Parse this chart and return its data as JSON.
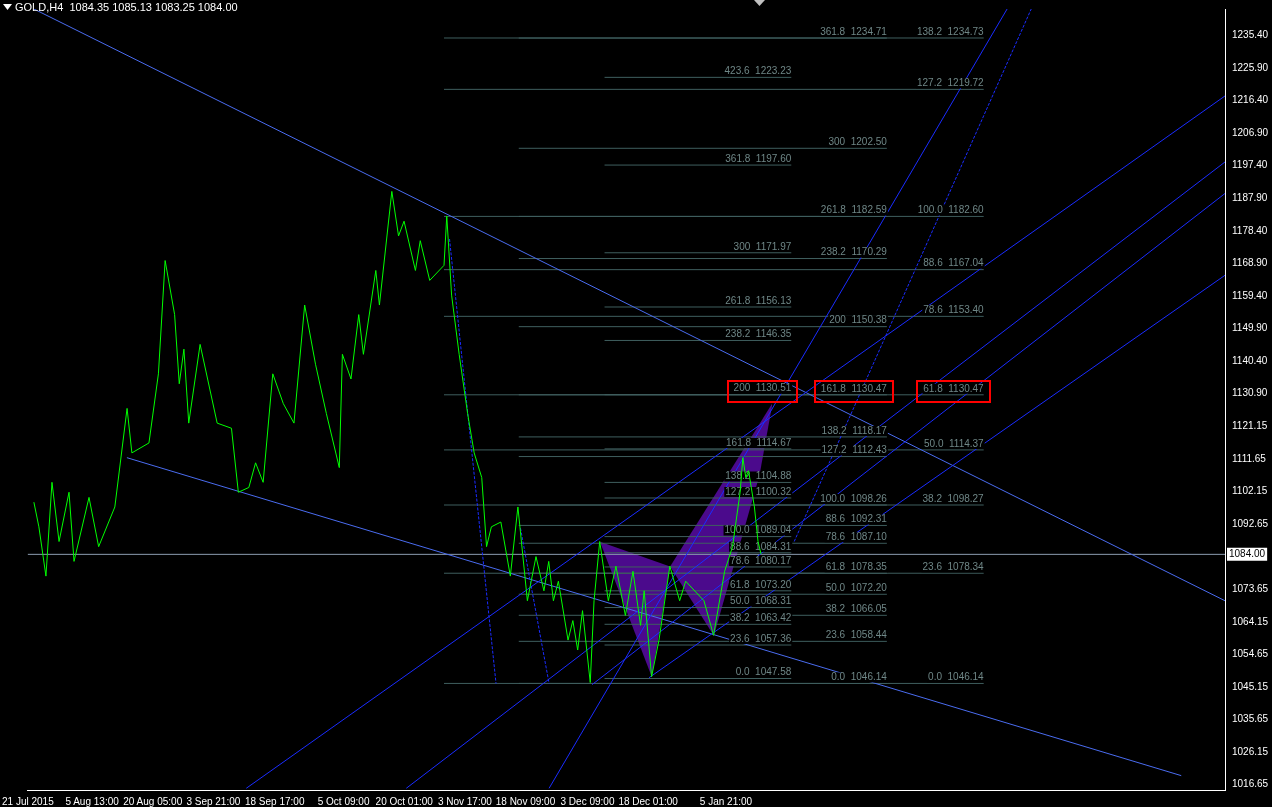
{
  "chart_data": {
    "type": "line",
    "title": "GOLD,H4  1084.35 1085.13 1083.25 1084.00",
    "xlim": [
      "2015-07-21T00:00",
      "2016-05-05T14:00"
    ],
    "xticks": [
      {
        "value": "2015-07-21T00:00",
        "label": "21 Jul 2015"
      },
      {
        "value": "2015-08-05T13:00",
        "label": "5 Aug 13:00"
      },
      {
        "value": "2015-08-20T05:00",
        "label": "20 Aug 05:00"
      },
      {
        "value": "2015-09-03T21:00",
        "label": "3 Sep 21:00"
      },
      {
        "value": "2015-09-18T17:00",
        "label": "18 Sep 17:00"
      },
      {
        "value": "2015-10-05T09:00",
        "label": "5 Oct 09:00"
      },
      {
        "value": "2015-10-20T01:00",
        "label": "20 Oct 01:00"
      },
      {
        "value": "2015-11-03T17:00",
        "label": "3 Nov 17:00"
      },
      {
        "value": "2015-11-18T09:00",
        "label": "18 Nov 09:00"
      },
      {
        "value": "2015-12-03T09:00",
        "label": "3 Dec 09:00"
      },
      {
        "value": "2015-12-18T01:00",
        "label": "18 Dec 01:00"
      },
      {
        "value": "2016-01-05T21:00",
        "label": "5 Jan 21:00"
      }
    ],
    "ylim": [
      1015,
      1243.2
    ],
    "yticks": [
      {
        "value": 1235.4,
        "label": "1235.40"
      },
      {
        "value": 1225.9,
        "label": "1225.90"
      },
      {
        "value": 1216.4,
        "label": "1216.40"
      },
      {
        "value": 1206.9,
        "label": "1206.90"
      },
      {
        "value": 1197.4,
        "label": "1197.40"
      },
      {
        "value": 1187.9,
        "label": "1187.90"
      },
      {
        "value": 1178.4,
        "label": "1178.40"
      },
      {
        "value": 1168.9,
        "label": "1168.90"
      },
      {
        "value": 1159.4,
        "label": "1159.40"
      },
      {
        "value": 1149.9,
        "label": "1149.90"
      },
      {
        "value": 1140.4,
        "label": "1140.40"
      },
      {
        "value": 1130.9,
        "label": "1130.90"
      },
      {
        "value": 1121.15,
        "label": "1121.15"
      },
      {
        "value": 1111.65,
        "label": "1111.65"
      },
      {
        "value": 1102.15,
        "label": "1102.15"
      },
      {
        "value": 1092.65,
        "label": "1092.65"
      },
      {
        "value": 1073.65,
        "label": "1073.65"
      },
      {
        "value": 1064.15,
        "label": "1064.15"
      },
      {
        "value": 1054.65,
        "label": "1054.65"
      },
      {
        "value": 1045.15,
        "label": "1045.15"
      },
      {
        "value": 1035.65,
        "label": "1035.65"
      },
      {
        "value": 1026.15,
        "label": "1026.15"
      },
      {
        "value": 1016.65,
        "label": "1016.65"
      }
    ],
    "ref_lines": [
      {
        "axis": "y",
        "value": 1084.0,
        "label": "1084.00",
        "color": "#8c9cb0"
      }
    ],
    "series": [
      {
        "color": "#3f5f5f",
        "x": [
          "2015-10-29T16:00",
          "2016-03-08T05:00"
        ],
        "values": [
          1234.73,
          1234.73
        ]
      },
      {
        "color": "#3f5f5f",
        "x": [
          "2015-10-29T16:00",
          "2016-03-08T05:00"
        ],
        "values": [
          1219.72,
          1219.72
        ]
      },
      {
        "color": "#3f5f5f",
        "x": [
          "2015-10-29T16:00",
          "2016-03-08T05:00"
        ],
        "values": [
          1182.6,
          1182.6
        ]
      },
      {
        "color": "#3f5f5f",
        "x": [
          "2015-10-29T16:00",
          "2016-03-08T05:00"
        ],
        "values": [
          1167.04,
          1167.04
        ]
      },
      {
        "color": "#3f5f5f",
        "x": [
          "2015-10-29T16:00",
          "2016-03-08T05:00"
        ],
        "values": [
          1153.4,
          1153.4
        ]
      },
      {
        "color": "#3f5f5f",
        "x": [
          "2015-10-29T16:00",
          "2016-03-08T05:00"
        ],
        "values": [
          1130.47,
          1130.47
        ]
      },
      {
        "color": "#3f5f5f",
        "x": [
          "2015-10-29T16:00",
          "2016-03-08T05:00"
        ],
        "values": [
          1114.37,
          1114.37
        ]
      },
      {
        "color": "#3f5f5f",
        "x": [
          "2015-10-29T16:00",
          "2016-03-08T05:00"
        ],
        "values": [
          1098.27,
          1098.27
        ]
      },
      {
        "color": "#3f5f5f",
        "x": [
          "2015-10-29T16:00",
          "2016-03-08T05:00"
        ],
        "values": [
          1078.34,
          1078.34
        ]
      },
      {
        "color": "#3f5f5f",
        "x": [
          "2015-10-29T16:00",
          "2016-03-08T05:00"
        ],
        "values": [
          1046.14,
          1046.14
        ]
      },
      {
        "color": "#3f5f5f",
        "x": [
          "2015-11-16T18:00",
          "2016-02-13T19:00"
        ],
        "values": [
          1234.71,
          1234.71
        ]
      },
      {
        "color": "#3f5f5f",
        "x": [
          "2015-11-16T18:00",
          "2016-02-13T19:00"
        ],
        "values": [
          1202.5,
          1202.5
        ]
      },
      {
        "color": "#3f5f5f",
        "x": [
          "2015-11-16T18:00",
          "2016-02-13T19:00"
        ],
        "values": [
          1182.59,
          1182.59
        ]
      },
      {
        "color": "#3f5f5f",
        "x": [
          "2015-11-16T18:00",
          "2016-02-13T19:00"
        ],
        "values": [
          1170.29,
          1170.29
        ]
      },
      {
        "color": "#3f5f5f",
        "x": [
          "2015-11-16T18:00",
          "2016-02-13T19:00"
        ],
        "values": [
          1150.38,
          1150.38
        ]
      },
      {
        "color": "#3f5f5f",
        "x": [
          "2015-11-16T18:00",
          "2016-02-13T19:00"
        ],
        "values": [
          1130.47,
          1130.47
        ]
      },
      {
        "color": "#3f5f5f",
        "x": [
          "2015-11-16T18:00",
          "2016-02-13T19:00"
        ],
        "values": [
          1118.17,
          1118.17
        ]
      },
      {
        "color": "#3f5f5f",
        "x": [
          "2015-11-16T18:00",
          "2016-02-13T19:00"
        ],
        "values": [
          1112.43,
          1112.43
        ]
      },
      {
        "color": "#3f5f5f",
        "x": [
          "2015-11-16T18:00",
          "2016-02-13T19:00"
        ],
        "values": [
          1098.26,
          1098.26
        ]
      },
      {
        "color": "#3f5f5f",
        "x": [
          "2015-11-16T18:00",
          "2016-02-13T19:00"
        ],
        "values": [
          1092.31,
          1092.31
        ]
      },
      {
        "color": "#3f5f5f",
        "x": [
          "2015-11-16T18:00",
          "2016-02-13T19:00"
        ],
        "values": [
          1087.1,
          1087.1
        ]
      },
      {
        "color": "#3f5f5f",
        "x": [
          "2015-11-16T18:00",
          "2016-02-13T19:00"
        ],
        "values": [
          1078.35,
          1078.35
        ]
      },
      {
        "color": "#3f5f5f",
        "x": [
          "2015-11-16T18:00",
          "2016-02-13T19:00"
        ],
        "values": [
          1072.2,
          1072.2
        ]
      },
      {
        "color": "#3f5f5f",
        "x": [
          "2015-11-16T18:00",
          "2016-02-13T19:00"
        ],
        "values": [
          1066.05,
          1066.05
        ]
      },
      {
        "color": "#3f5f5f",
        "x": [
          "2015-11-16T18:00",
          "2016-02-13T19:00"
        ],
        "values": [
          1058.44,
          1058.44
        ]
      },
      {
        "color": "#3f5f5f",
        "x": [
          "2015-11-16T18:00",
          "2016-02-13T19:00"
        ],
        "values": [
          1046.14,
          1046.14
        ]
      },
      {
        "color": "#3f5f5f",
        "x": [
          "2015-12-07T12:00",
          "2016-01-21T16:00"
        ],
        "values": [
          1223.23,
          1223.23
        ]
      },
      {
        "color": "#3f5f5f",
        "x": [
          "2015-12-07T12:00",
          "2016-01-21T16:00"
        ],
        "values": [
          1197.6,
          1197.6
        ]
      },
      {
        "color": "#3f5f5f",
        "x": [
          "2015-12-07T12:00",
          "2016-01-21T16:00"
        ],
        "values": [
          1171.97,
          1171.97
        ]
      },
      {
        "color": "#3f5f5f",
        "x": [
          "2015-12-07T12:00",
          "2016-01-21T16:00"
        ],
        "values": [
          1156.13,
          1156.13
        ]
      },
      {
        "color": "#3f5f5f",
        "x": [
          "2015-12-07T12:00",
          "2016-01-21T16:00"
        ],
        "values": [
          1146.35,
          1146.35
        ]
      },
      {
        "color": "#3f5f5f",
        "x": [
          "2015-12-07T12:00",
          "2016-01-21T16:00"
        ],
        "values": [
          1130.51,
          1130.51
        ]
      },
      {
        "color": "#3f5f5f",
        "x": [
          "2015-12-07T12:00",
          "2016-01-21T16:00"
        ],
        "values": [
          1114.67,
          1114.67
        ]
      },
      {
        "color": "#3f5f5f",
        "x": [
          "2015-12-07T12:00",
          "2016-01-21T16:00"
        ],
        "values": [
          1104.88,
          1104.88
        ]
      },
      {
        "color": "#3f5f5f",
        "x": [
          "2015-12-07T12:00",
          "2016-01-21T16:00"
        ],
        "values": [
          1100.32,
          1100.32
        ]
      },
      {
        "color": "#3f5f5f",
        "x": [
          "2015-12-07T12:00",
          "2016-01-21T16:00"
        ],
        "values": [
          1089.04,
          1089.04
        ]
      },
      {
        "color": "#3f5f5f",
        "x": [
          "2015-12-07T12:00",
          "2016-01-21T16:00"
        ],
        "values": [
          1084.31,
          1084.31
        ]
      },
      {
        "color": "#3f5f5f",
        "x": [
          "2015-12-07T12:00",
          "2016-01-21T16:00"
        ],
        "values": [
          1080.17,
          1080.17
        ]
      },
      {
        "color": "#3f5f5f",
        "x": [
          "2015-12-07T12:00",
          "2016-01-21T16:00"
        ],
        "values": [
          1073.2,
          1073.2
        ]
      },
      {
        "color": "#3f5f5f",
        "x": [
          "2015-12-07T12:00",
          "2016-01-21T16:00"
        ],
        "values": [
          1068.31,
          1068.31
        ]
      },
      {
        "color": "#3f5f5f",
        "x": [
          "2015-12-07T12:00",
          "2016-01-21T16:00"
        ],
        "values": [
          1063.42,
          1063.42
        ]
      },
      {
        "color": "#3f5f5f",
        "x": [
          "2015-12-07T12:00",
          "2016-01-21T16:00"
        ],
        "values": [
          1057.36,
          1057.36
        ]
      },
      {
        "color": "#3f5f5f",
        "x": [
          "2015-12-07T12:00",
          "2016-01-21T16:00"
        ],
        "values": [
          1047.58,
          1047.58
        ]
      },
      {
        "color": "#4a6cf0",
        "x": [
          "2015-07-22T11:00",
          "2016-05-05T14:00"
        ],
        "values": [
          1243.2,
          1070.3
        ]
      },
      {
        "color": "#4a6cf0",
        "x": [
          "2015-08-13T23:00",
          "2016-04-25T00:00"
        ],
        "values": [
          1112.1,
          1019.2
        ]
      },
      {
        "color": "#1a2cff",
        "x": [
          "2015-09-11T20:00",
          "2016-05-05T14:00"
        ],
        "values": [
          1015.5,
          1217.8
        ]
      },
      {
        "color": "#1a2cff",
        "x": [
          "2015-10-20T13:00",
          "2016-05-05T14:00"
        ],
        "values": [
          1015.5,
          1198.5
        ]
      },
      {
        "color": "#1a2cff",
        "x": [
          "2015-12-04T12:00",
          "2016-05-05T14:00"
        ],
        "values": [
          1045.8,
          1189.3
        ]
      },
      {
        "color": "#1a2cff",
        "x": [
          "2015-12-18T06:00",
          "2016-05-05T14:00"
        ],
        "values": [
          1047.8,
          1165.4
        ]
      },
      {
        "color": "#1a2cff",
        "x": [
          "2015-11-24T02:00",
          "2016-03-13T21:00"
        ],
        "values": [
          1015.5,
          1243.2
        ]
      },
      {
        "color": "#1a2cff",
        "x": [
          "2016-01-22T09:00",
          "2016-03-19T17:00"
        ],
        "values": [
          1087.6,
          1243.2
        ],
        "line_style": "dashed"
      },
      {
        "color": "#1a2cff",
        "x": [
          "2015-10-31T00:00",
          "2015-11-11T06:00"
        ],
        "values": [
          1176.0,
          1046.1
        ],
        "line_style": "dashed"
      },
      {
        "color": "#1a2cff",
        "x": [
          "2015-11-17T04:00",
          "2015-11-24T02:00"
        ],
        "values": [
          1091.5,
          1046.1
        ],
        "line_style": "dashed"
      },
      {
        "color": "#00ff00",
        "x": [
          "2015-07-22T11:00",
          "2015-07-23T16:00",
          "2015-07-25T09:00",
          "2015-07-26T20:00",
          "2015-07-28T13:00",
          "2015-07-30T23:00",
          "2015-08-01T04:00",
          "2015-08-04T19:00",
          "2015-08-07T03:00",
          "2015-08-11T01:00",
          "2015-08-14T00:00",
          "2015-08-15T04:00",
          "2015-08-19T07:00",
          "2015-08-21T14:00",
          "2015-08-23T05:00",
          "2015-08-25T12:00",
          "2015-08-26T15:00",
          "2015-08-27T18:00",
          "2015-08-28T22:00",
          "2015-08-31T16:00",
          "2015-09-04T19:00",
          "2015-09-08T06:00",
          "2015-09-09T22:00",
          "2015-09-12T11:00",
          "2015-09-14T02:00",
          "2015-09-15T22:00",
          "2015-09-18T06:00",
          "2015-09-20T19:00",
          "2015-09-23T09:00",
          "2015-09-25T23:00",
          "2015-09-28T14:00",
          "2015-10-01T05:00",
          "2015-10-04T08:00",
          "2015-10-05T02:00",
          "2015-10-07T04:00",
          "2015-10-09T01:00",
          "2015-10-10T04:00",
          "2015-10-13T04:00",
          "2015-10-14T01:00",
          "2015-10-17T01:00",
          "2015-10-18T16:00",
          "2015-10-20T00:00",
          "2015-10-22T18:00",
          "2015-10-23T22:00",
          "2015-10-26T05:00",
          "2015-10-29T16:00",
          "2015-10-30T08:00",
          "2015-10-31T12:00",
          "2015-11-02T08:00",
          "2015-11-04T09:00",
          "2015-11-05T23:00",
          "2015-11-07T19:00",
          "2015-11-08T23:00",
          "2015-11-10T03:00",
          "2015-11-12T10:00",
          "2015-11-14T17:00",
          "2015-11-16T13:00",
          "2015-11-18T20:00",
          "2015-11-20T22:00",
          "2015-11-22T20:00",
          "2015-11-24T00:00",
          "2015-11-25T03:00",
          "2015-11-26T08:00",
          "2015-11-28T16:00",
          "2015-11-29T20:00",
          "2015-12-01T00:00",
          "2015-12-02T04:00",
          "2015-12-04T01:00",
          "2015-12-04T23:00",
          "2015-12-06T08:00",
          "2015-12-08T10:00",
          "2015-12-10T06:00",
          "2015-12-12T13:00",
          "2015-12-14T09:00",
          "2015-12-16T05:00",
          "2015-12-17T02:00",
          "2015-12-18T21:00",
          "2015-12-20T16:00",
          "2015-12-23T07:00",
          "2015-12-25T16:00",
          "2015-12-27T03:00",
          "2015-12-31T13:00",
          "2016-01-02T21:00",
          "2016-01-05T13:00",
          "2016-01-07T11:00",
          "2016-01-09T07:00",
          "2016-01-09T23:00",
          "2016-01-10T16:00",
          "2016-01-11T08:00",
          "2016-01-12T18:00",
          "2016-01-13T15:00",
          "2016-01-14T08:00"
        ],
        "values": [
          1099.1,
          1091.9,
          1077.5,
          1104.9,
          1087.6,
          1102.0,
          1081.8,
          1100.5,
          1086.1,
          1097.7,
          1126.5,
          1113.5,
          1116.4,
          1136.6,
          1169.7,
          1153.9,
          1133.7,
          1143.8,
          1122.2,
          1145.2,
          1122.2,
          1120.7,
          1102.0,
          1103.4,
          1110.6,
          1104.9,
          1136.6,
          1127.9,
          1122.2,
          1156.7,
          1139.4,
          1125.0,
          1109.2,
          1142.3,
          1135.1,
          1153.9,
          1142.3,
          1166.8,
          1156.7,
          1189.9,
          1176.9,
          1181.2,
          1166.8,
          1175.5,
          1163.9,
          1168.3,
          1182.7,
          1159.6,
          1142.3,
          1125.0,
          1113.5,
          1106.3,
          1086.1,
          1091.9,
          1093.3,
          1077.5,
          1097.7,
          1070.3,
          1083.2,
          1073.2,
          1081.8,
          1070.3,
          1076.0,
          1058.8,
          1064.5,
          1055.9,
          1067.4,
          1046.4,
          1070.3,
          1087.6,
          1070.3,
          1080.4,
          1066.0,
          1078.9,
          1063.1,
          1073.2,
          1048.1,
          1058.8,
          1080.4,
          1070.3,
          1076.0,
          1070.3,
          1060.2,
          1078.9,
          1086.1,
          1102.0,
          1112.1,
          1106.3,
          1108.3,
          1097.7,
          1087.6,
          1084.0
        ]
      }
    ],
    "annotations": [
      {
        "text": "138.2  1234.73",
        "x": "2016-03-08T05:00",
        "y": 1234.73
      },
      {
        "text": "127.2  1219.72",
        "x": "2016-03-08T05:00",
        "y": 1219.72
      },
      {
        "text": "100.0  1182.60",
        "x": "2016-03-08T05:00",
        "y": 1182.6
      },
      {
        "text": "88.6  1167.04",
        "x": "2016-03-08T05:00",
        "y": 1167.04
      },
      {
        "text": "78.6  1153.40",
        "x": "2016-03-08T05:00",
        "y": 1153.4
      },
      {
        "text": "61.8  1130.47",
        "x": "2016-03-08T05:00",
        "y": 1130.47
      },
      {
        "text": "50.0  1114.37",
        "x": "2016-03-08T05:00",
        "y": 1114.37
      },
      {
        "text": "38.2  1098.27",
        "x": "2016-03-08T05:00",
        "y": 1098.27
      },
      {
        "text": "23.6  1078.34",
        "x": "2016-03-08T05:00",
        "y": 1078.34
      },
      {
        "text": "0.0  1046.14",
        "x": "2016-03-08T05:00",
        "y": 1046.14
      },
      {
        "text": "361.8  1234.71",
        "x": "2016-02-13T19:00",
        "y": 1234.71
      },
      {
        "text": "300  1202.50",
        "x": "2016-02-13T19:00",
        "y": 1202.5
      },
      {
        "text": "261.8  1182.59",
        "x": "2016-02-13T19:00",
        "y": 1182.59
      },
      {
        "text": "238.2  1170.29",
        "x": "2016-02-13T19:00",
        "y": 1170.29
      },
      {
        "text": "200  1150.38",
        "x": "2016-02-13T19:00",
        "y": 1150.38
      },
      {
        "text": "161.8  1130.47",
        "x": "2016-02-13T19:00",
        "y": 1130.47
      },
      {
        "text": "138.2  1118.17",
        "x": "2016-02-13T19:00",
        "y": 1118.17
      },
      {
        "text": "127.2  1112.43",
        "x": "2016-02-13T19:00",
        "y": 1112.43
      },
      {
        "text": "100.0  1098.26",
        "x": "2016-02-13T19:00",
        "y": 1098.26
      },
      {
        "text": "88.6  1092.31",
        "x": "2016-02-13T19:00",
        "y": 1092.31
      },
      {
        "text": "78.6  1087.10",
        "x": "2016-02-13T19:00",
        "y": 1087.1
      },
      {
        "text": "61.8  1078.35",
        "x": "2016-02-13T19:00",
        "y": 1078.35
      },
      {
        "text": "50.0  1072.20",
        "x": "2016-02-13T19:00",
        "y": 1072.2
      },
      {
        "text": "38.2  1066.05",
        "x": "2016-02-13T19:00",
        "y": 1066.05
      },
      {
        "text": "23.6  1058.44",
        "x": "2016-02-13T19:00",
        "y": 1058.44
      },
      {
        "text": "0.0  1046.14",
        "x": "2016-02-13T19:00",
        "y": 1046.14
      },
      {
        "text": "423.6  1223.23",
        "x": "2016-01-21T16:00",
        "y": 1223.23
      },
      {
        "text": "361.8  1197.60",
        "x": "2016-01-21T16:00",
        "y": 1197.6
      },
      {
        "text": "300  1171.97",
        "x": "2016-01-21T16:00",
        "y": 1171.97
      },
      {
        "text": "261.8  1156.13",
        "x": "2016-01-21T16:00",
        "y": 1156.13
      },
      {
        "text": "238.2  1146.35",
        "x": "2016-01-21T16:00",
        "y": 1146.35
      },
      {
        "text": "200  1130.51",
        "x": "2016-01-21T16:00",
        "y": 1130.51
      },
      {
        "text": "161.8  1114.67",
        "x": "2016-01-21T16:00",
        "y": 1114.67
      },
      {
        "text": "138.2  1104.88",
        "x": "2016-01-21T16:00",
        "y": 1104.88
      },
      {
        "text": "127.2  1100.32",
        "x": "2016-01-21T16:00",
        "y": 1100.32
      },
      {
        "text": "100.0  1089.04",
        "x": "2016-01-21T16:00",
        "y": 1089.04
      },
      {
        "text": "88.6  1084.31",
        "x": "2016-01-21T16:00",
        "y": 1084.31
      },
      {
        "text": "78.6  1080.17",
        "x": "2016-01-21T16:00",
        "y": 1080.17
      },
      {
        "text": "61.8  1073.20",
        "x": "2016-01-21T16:00",
        "y": 1073.2
      },
      {
        "text": "50.0  1068.31",
        "x": "2016-01-21T16:00",
        "y": 1068.31
      },
      {
        "text": "38.2  1063.42",
        "x": "2016-01-21T16:00",
        "y": 1063.42
      },
      {
        "text": "23.6  1057.36",
        "x": "2016-01-21T16:00",
        "y": 1057.36
      },
      {
        "text": "0.0  1047.58",
        "x": "2016-01-21T16:00",
        "y": 1047.58
      }
    ]
  }
}
